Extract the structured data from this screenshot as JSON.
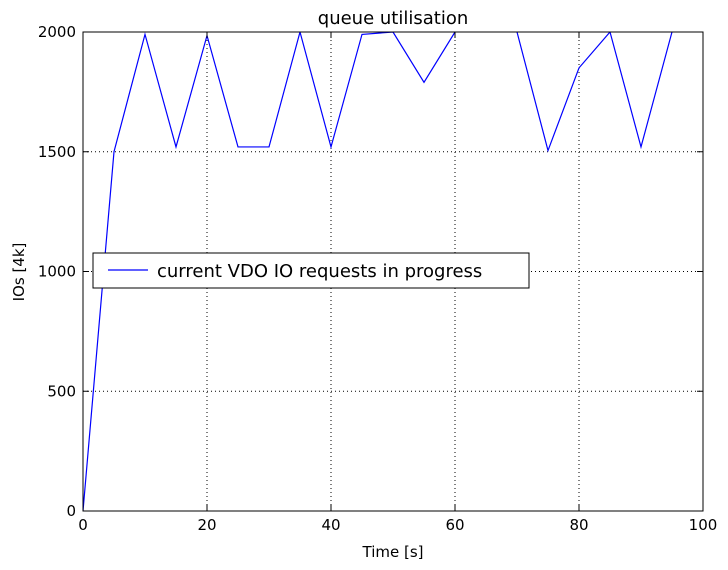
{
  "chart_data": {
    "type": "line",
    "title": "queue utilisation",
    "xlabel": "Time [s]",
    "ylabel": "IOs [4k]",
    "xlim": [
      0,
      100
    ],
    "ylim": [
      0,
      2000
    ],
    "xticks": [
      0,
      20,
      40,
      60,
      80,
      100
    ],
    "yticks": [
      0,
      500,
      1000,
      1500,
      2000
    ],
    "xtick_labels": [
      "0",
      "20",
      "40",
      "60",
      "80",
      "100"
    ],
    "ytick_labels": [
      "0",
      "500",
      "1000",
      "1500",
      "2000"
    ],
    "grid": true,
    "legend_position": "center-left",
    "series": [
      {
        "name": "current VDO IO requests in progress",
        "color": "#0000ff",
        "x": [
          0,
          5,
          10,
          15,
          20,
          25,
          30,
          35,
          40,
          45,
          50,
          55,
          60,
          65,
          70,
          75,
          80,
          85,
          90,
          95,
          100
        ],
        "y": [
          0,
          1500,
          1990,
          1520,
          1985,
          1520,
          1520,
          2000,
          1520,
          1990,
          2000,
          1790,
          2000,
          2060,
          2000,
          1505,
          1850,
          2000,
          1520,
          2000,
          2100
        ]
      }
    ]
  }
}
